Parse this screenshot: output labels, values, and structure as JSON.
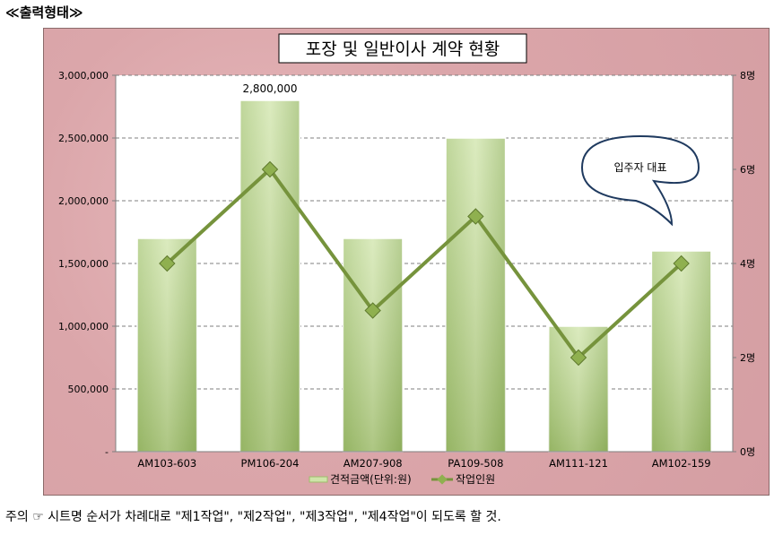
{
  "heading": "≪출력형태≫",
  "footer": "주의 ☞ 시트명 순서가 차례대로 \"제1작업\", \"제2작업\", \"제3작업\", \"제4작업\"이 되도록 할 것.",
  "chart_data": {
    "type": "bar",
    "title": "포장 및 일반이사 계약 현황",
    "categories": [
      "AM103-603",
      "PM106-204",
      "AM207-908",
      "PA109-508",
      "AM111-121",
      "AM102-159"
    ],
    "series": [
      {
        "name": "견적금액(단위:원)",
        "type": "bar",
        "axis": "left",
        "values": [
          1700000,
          2800000,
          1700000,
          2500000,
          1000000,
          1600000
        ]
      },
      {
        "name": "작업인원",
        "type": "line",
        "axis": "right",
        "values": [
          4,
          6,
          3,
          5,
          2,
          4
        ]
      }
    ],
    "ylim": [
      0,
      3000000
    ],
    "y_ticks": [
      "-",
      "500,000",
      "1,000,000",
      "1,500,000",
      "2,000,000",
      "2,500,000",
      "3,000,000"
    ],
    "y2lim": [
      0,
      8
    ],
    "y2_ticks": [
      "0명",
      "2명",
      "4명",
      "6명",
      "8명"
    ],
    "data_labels": [
      {
        "category": "PM106-204",
        "text": "2,800,000"
      }
    ],
    "callout": "입주자 대표",
    "legend_position": "bottom",
    "grid": true,
    "colors": {
      "bar": "#b7d48a",
      "line": "#76933c",
      "marker": "#8fb04f"
    }
  }
}
